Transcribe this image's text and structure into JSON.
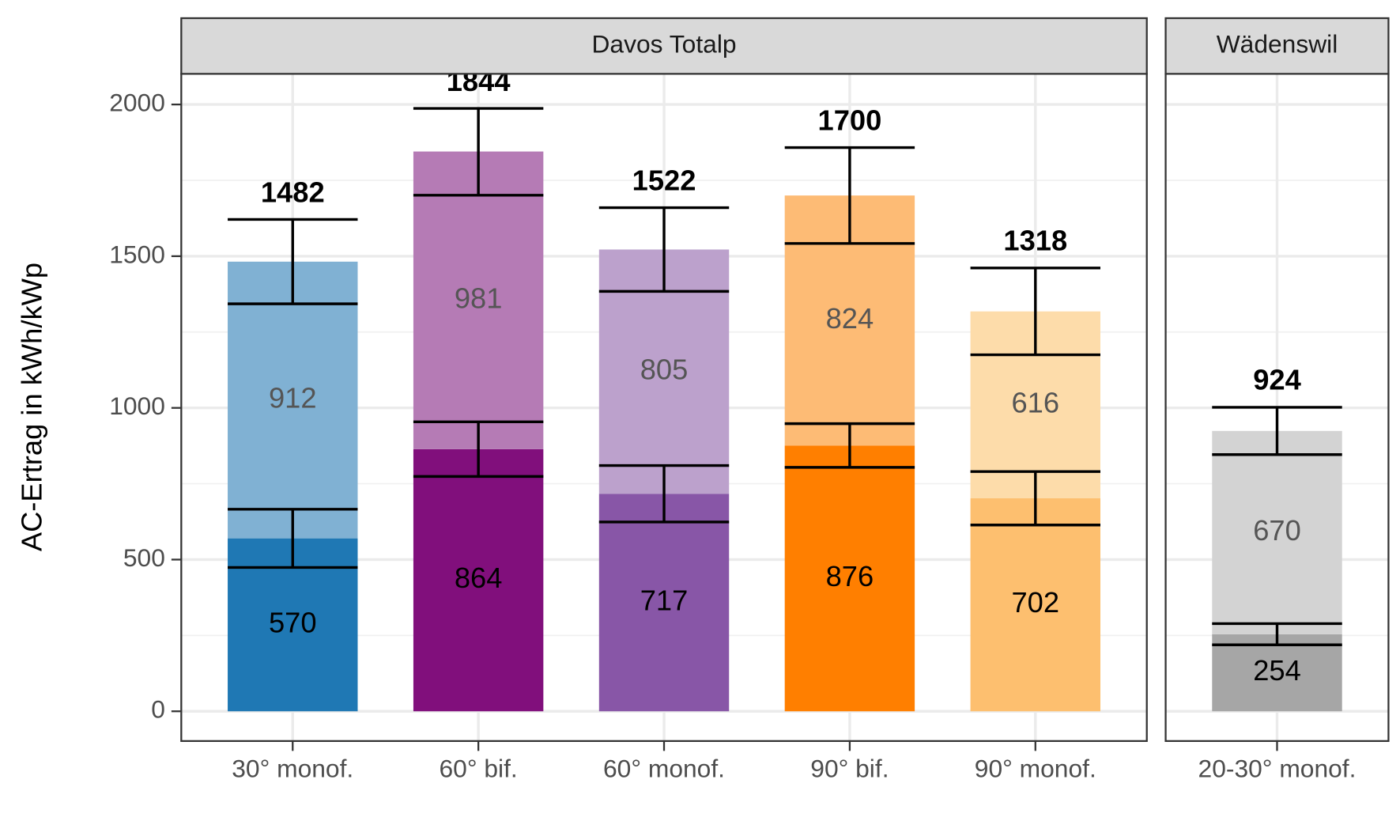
{
  "chart_data": {
    "type": "bar",
    "ylabel": "AC-Ertrag in kWh/kWp",
    "ylim": [
      -98,
      2101
    ],
    "yticks": [
      0,
      500,
      1000,
      1500,
      2000
    ],
    "minor_yticks": [
      250,
      750,
      1250,
      1750
    ],
    "grid": true,
    "panels": [
      {
        "title": "Davos Totalp",
        "categories": [
          "30° monof.",
          "60° bif.",
          "60° monof.",
          "90° bif.",
          "90° monof."
        ],
        "series": [
          {
            "values": [
              570,
              864,
              717,
              876,
              702
            ],
            "errors": [
              96,
              90,
              93,
              72,
              88
            ],
            "colors": [
              "#1f78b4",
              "#810f7c",
              "#8856a7",
              "#ff7f00",
              "#fdbf6f"
            ]
          },
          {
            "values": [
              912,
              981,
              805,
              824,
              616
            ],
            "colors": [
              "#80b1d3",
              "#b57bb5",
              "#bca1cc",
              "#fdbb75",
              "#fddcaa"
            ]
          }
        ],
        "totals": {
          "values": [
            1482,
            1844,
            1522,
            1700,
            1318
          ],
          "errors": [
            139,
            143,
            138,
            158,
            143
          ]
        }
      },
      {
        "title": "Wädenswil",
        "categories": [
          "20-30° monof."
        ],
        "series": [
          {
            "values": [
              254
            ],
            "errors": [
              35
            ],
            "colors": [
              "#a6a6a6"
            ]
          },
          {
            "values": [
              670
            ],
            "colors": [
              "#d3d3d3"
            ]
          }
        ],
        "totals": {
          "values": [
            924
          ],
          "errors": [
            78
          ]
        }
      }
    ]
  }
}
